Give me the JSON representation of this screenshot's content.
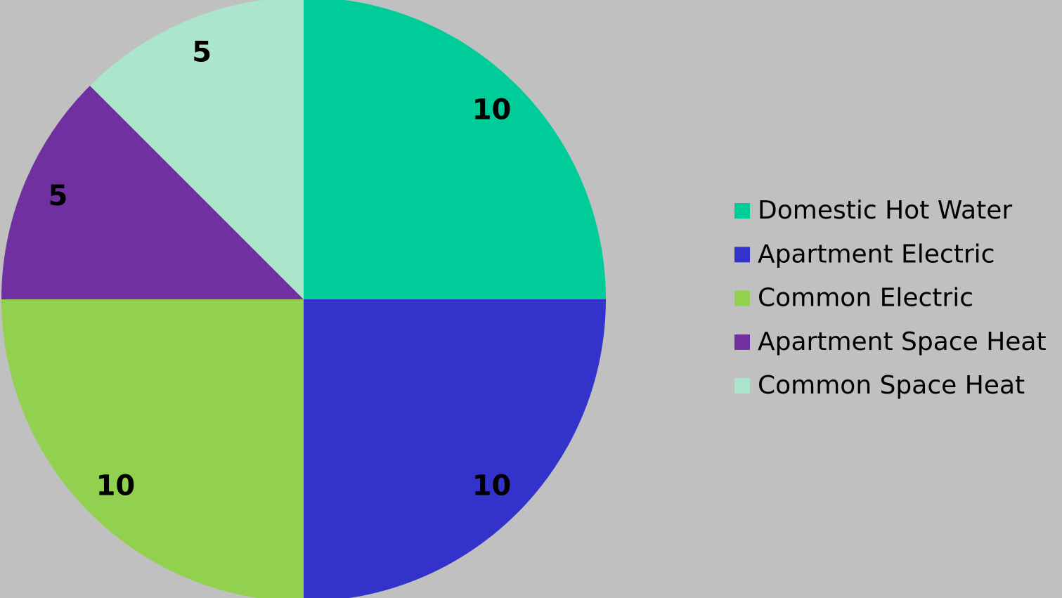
{
  "chart_data": {
    "type": "pie",
    "categories": [
      "Domestic Hot Water",
      "Apartment Electric",
      "Common Electric",
      "Apartment Space Heat",
      "Common Space Heat"
    ],
    "values": [
      10,
      10,
      10,
      5,
      5
    ],
    "colors": [
      "#00cc99",
      "#3333cc",
      "#92d050",
      "#7030a0",
      "#aae5cc"
    ],
    "legend": "right"
  }
}
